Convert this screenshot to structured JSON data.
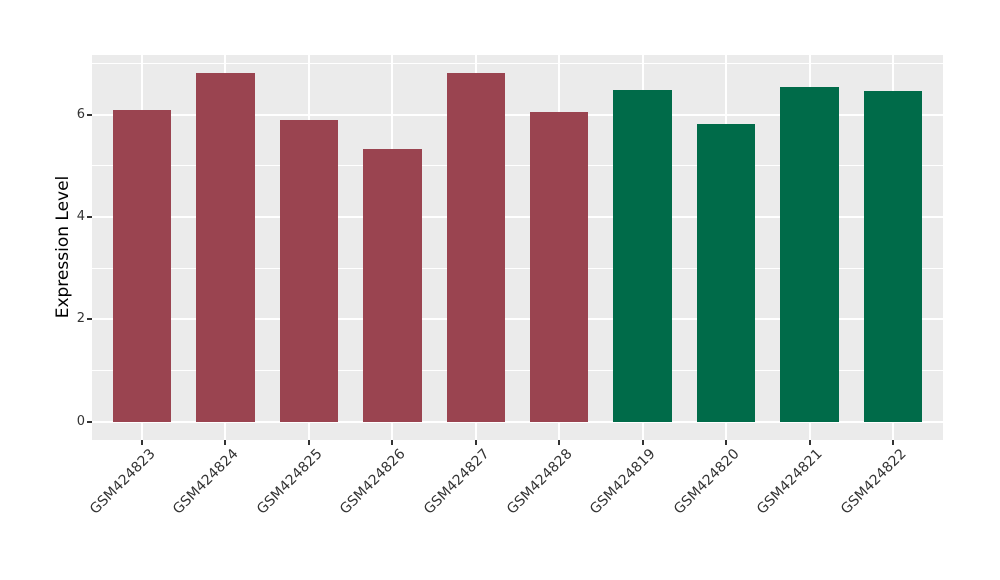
{
  "chart_data": {
    "type": "bar",
    "title": "",
    "xlabel": "",
    "ylabel": "Expression Level",
    "categories": [
      "GSM424823",
      "GSM424824",
      "GSM424825",
      "GSM424826",
      "GSM424827",
      "GSM424828",
      "GSM424819",
      "GSM424820",
      "GSM424821",
      "GSM424822"
    ],
    "values": [
      6.1,
      6.82,
      5.9,
      5.34,
      6.81,
      6.05,
      6.48,
      5.82,
      6.54,
      6.47
    ],
    "bar_colors": [
      "#9a4450",
      "#9a4450",
      "#9a4450",
      "#9a4450",
      "#9a4450",
      "#9a4450",
      "#006b49",
      "#006b49",
      "#006b49",
      "#006b49"
    ],
    "groups": [
      {
        "name": "group-red",
        "color": "#9a4450",
        "categories": [
          "GSM424823",
          "GSM424824",
          "GSM424825",
          "GSM424826",
          "GSM424827",
          "GSM424828"
        ]
      },
      {
        "name": "group-green",
        "color": "#006b49",
        "categories": [
          "GSM424819",
          "GSM424820",
          "GSM424821",
          "GSM424822"
        ]
      }
    ],
    "ylim": [
      -0.36,
      7.17
    ],
    "yticks": [
      0,
      2,
      4,
      6
    ],
    "ytick_labels": [
      "0",
      "2",
      "4",
      "6"
    ],
    "yticks_minor": [
      1,
      3,
      5,
      7
    ],
    "x_label_rotation_deg": 45,
    "bar_width_frac": 0.7,
    "grid": true,
    "legend": "none",
    "panel_background": "#ebebeb",
    "grid_color": "#ffffff",
    "tick_color": "#333333",
    "axis_text_color": "#333333",
    "axis_title_color": "#000000",
    "figure_background": "#ffffff"
  }
}
